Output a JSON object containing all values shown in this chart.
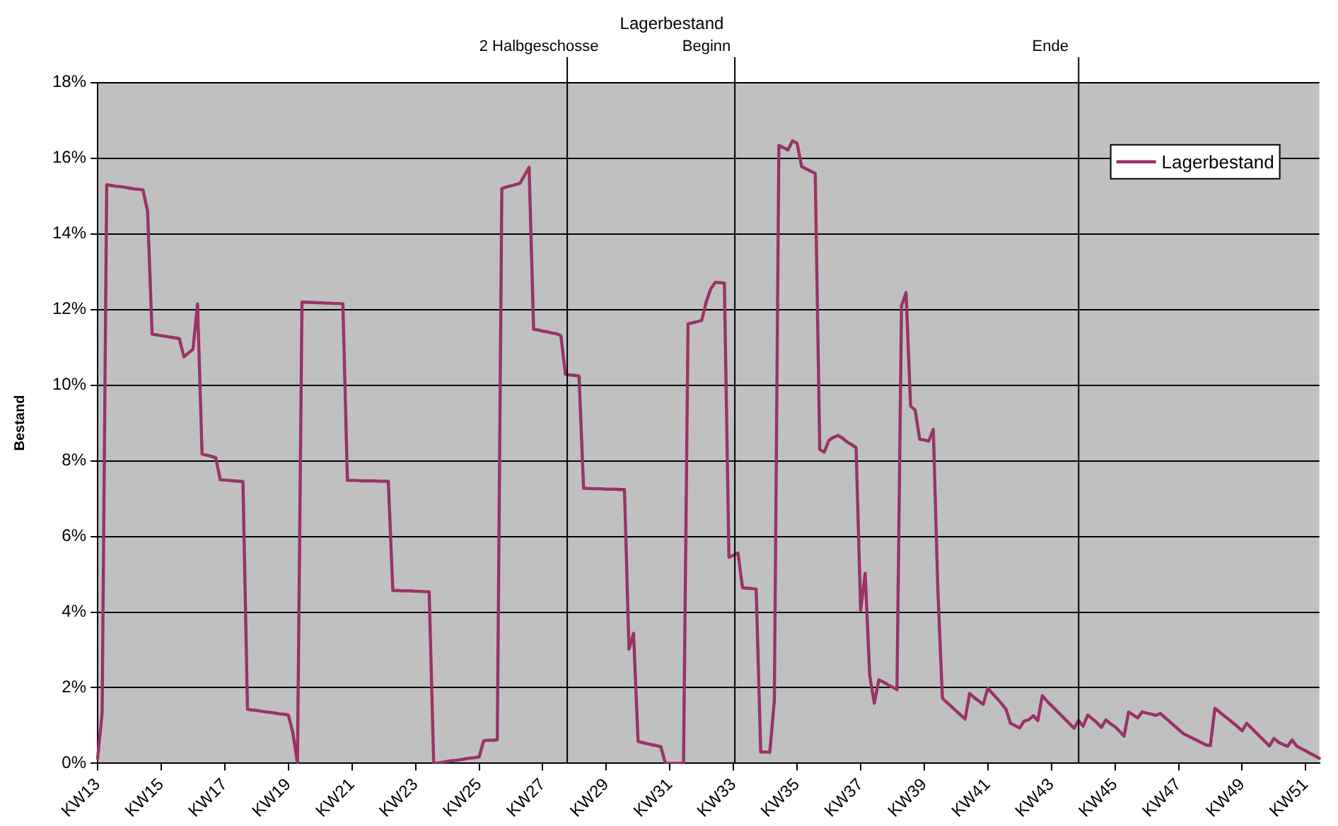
{
  "chart_data": {
    "type": "line",
    "title": "Lagerbestand",
    "ylabel": "Bestand",
    "categories": [
      "KW13",
      null,
      null,
      null,
      null,
      null,
      null,
      null,
      null,
      null,
      null,
      null,
      null,
      null,
      "KW15",
      null,
      null,
      null,
      null,
      null,
      null,
      null,
      null,
      null,
      null,
      null,
      null,
      null,
      "KW17",
      null,
      null,
      null,
      null,
      null,
      null,
      null,
      null,
      null,
      null,
      null,
      null,
      null,
      "KW19",
      null,
      null,
      null,
      null,
      null,
      null,
      null,
      null,
      null,
      null,
      null,
      null,
      null,
      "KW21",
      null,
      null,
      null,
      null,
      null,
      null,
      null,
      null,
      null,
      null,
      null,
      null,
      null,
      "KW23",
      null,
      null,
      null,
      null,
      null,
      null,
      null,
      null,
      null,
      null,
      null,
      null,
      null,
      "KW25",
      null,
      null,
      null,
      null,
      null,
      null,
      null,
      null,
      null,
      null,
      null,
      null,
      null,
      "KW27",
      null,
      null,
      null,
      null,
      null,
      null,
      null,
      null,
      null,
      null,
      null,
      null,
      null,
      "KW29",
      null,
      null,
      null,
      null,
      null,
      null,
      null,
      null,
      null,
      null,
      null,
      null,
      null,
      "KW31",
      null,
      null,
      null,
      null,
      null,
      null,
      null,
      null,
      null,
      null,
      null,
      null,
      null,
      "KW33",
      null,
      null,
      null,
      null,
      null,
      null,
      null,
      null,
      null,
      null,
      null,
      null,
      null,
      "KW35",
      null,
      null,
      null,
      null,
      null,
      null,
      null,
      null,
      null,
      null,
      null,
      null,
      null,
      "KW37",
      null,
      null,
      null,
      null,
      null,
      null,
      null,
      null,
      null,
      null,
      null,
      null,
      null,
      "KW39",
      null,
      null,
      null,
      null,
      null,
      null,
      null,
      null,
      null,
      null,
      null,
      null,
      null,
      "KW41",
      null,
      null,
      null,
      null,
      null,
      null,
      null,
      null,
      null,
      null,
      null,
      null,
      null,
      "KW43",
      null,
      null,
      null,
      null,
      null,
      null,
      null,
      null,
      null,
      null,
      null,
      null,
      null,
      "KW45",
      null,
      null,
      null,
      null,
      null,
      null,
      null,
      null,
      null,
      null,
      null,
      null,
      null,
      "KW47",
      null,
      null,
      null,
      null,
      null,
      null,
      null,
      null,
      null,
      null,
      null,
      null,
      null,
      "KW49",
      null,
      null,
      null,
      null,
      null,
      null,
      null,
      null,
      null,
      null,
      null,
      null,
      null,
      "KW51",
      null,
      null,
      null
    ],
    "ylim": [
      0,
      18
    ],
    "yticks": [
      {
        "value": 0,
        "label": "0%"
      },
      {
        "value": 2,
        "label": "2%"
      },
      {
        "value": 4,
        "label": "4%"
      },
      {
        "value": 6,
        "label": "6%"
      },
      {
        "value": 8,
        "label": "8%"
      },
      {
        "value": 10,
        "label": "10%"
      },
      {
        "value": 12,
        "label": "12%"
      },
      {
        "value": 14,
        "label": "14%"
      },
      {
        "value": 16,
        "label": "16%"
      },
      {
        "value": 18,
        "label": "18%"
      }
    ],
    "grid": "y",
    "legend": "top right",
    "marker": "none",
    "line_style": "solid",
    "annotations": [
      "2 Halbgeschosse",
      "Beginn",
      "Ende"
    ],
    "series": [
      {
        "name": "Lagerbestand",
        "color": "#993366",
        "values": [
          0.13,
          1.35,
          15.3,
          15.28,
          15.26,
          15.25,
          15.23,
          15.21,
          15.19,
          15.18,
          15.16,
          14.6,
          11.35,
          11.33,
          11.31,
          11.29,
          11.27,
          11.25,
          11.23,
          10.75,
          10.85,
          10.95,
          12.15,
          8.18,
          8.15,
          8.12,
          8.08,
          7.5,
          7.49,
          7.48,
          7.47,
          7.46,
          7.45,
          1.43,
          1.41,
          1.4,
          1.38,
          1.36,
          1.35,
          1.33,
          1.31,
          1.3,
          1.28,
          0.8,
          0,
          12.2,
          12.19,
          12.19,
          12.18,
          12.18,
          12.17,
          12.17,
          12.16,
          12.16,
          12.15,
          7.48,
          7.48,
          7.48,
          7.47,
          7.47,
          7.47,
          7.47,
          7.46,
          7.46,
          7.46,
          4.57,
          4.57,
          4.56,
          4.56,
          4.56,
          4.55,
          4.55,
          4.54,
          4.54,
          0,
          0.01,
          0.03,
          0.05,
          0.07,
          0.08,
          0.1,
          0.12,
          0.14,
          0.15,
          0.17,
          0.6,
          0.61,
          0.61,
          0.62,
          15.2,
          15.24,
          15.27,
          15.3,
          15.34,
          15.55,
          15.76,
          11.48,
          11.46,
          11.43,
          11.41,
          11.38,
          11.36,
          11.31,
          10.29,
          10.27,
          10.26,
          10.24,
          7.27,
          7.27,
          7.26,
          7.26,
          7.26,
          7.25,
          7.25,
          7.25,
          7.24,
          7.24,
          3.02,
          3.44,
          0.58,
          0.55,
          0.52,
          0.49,
          0.47,
          0.44,
          0,
          0,
          0,
          0,
          0,
          11.62,
          11.65,
          11.68,
          11.71,
          12.2,
          12.55,
          12.72,
          12.71,
          12.7,
          5.45,
          5.5,
          5.56,
          4.64,
          4.63,
          4.62,
          4.61,
          0.3,
          0.3,
          0.29,
          1.66,
          16.34,
          16.28,
          16.22,
          16.46,
          16.4,
          15.78,
          15.72,
          15.66,
          15.6,
          8.3,
          8.23,
          8.54,
          8.62,
          8.67,
          8.6,
          8.5,
          8.43,
          8.35,
          4.05,
          5.03,
          2.32,
          1.59,
          2.21,
          2.15,
          2.08,
          2.02,
          1.95,
          12.1,
          12.45,
          9.45,
          9.34,
          8.57,
          8.55,
          8.52,
          8.83,
          4.6,
          1.72,
          1.61,
          1.5,
          1.39,
          1.28,
          1.17,
          1.85,
          1.74,
          1.65,
          1.56,
          1.99,
          1.85,
          1.72,
          1.58,
          1.43,
          1.06,
          1,
          0.93,
          1.12,
          1.15,
          1.26,
          1.13,
          1.79,
          1.65,
          1.53,
          1.41,
          1.29,
          1.17,
          1.05,
          0.93,
          1.13,
          0.98,
          1.28,
          1.18,
          1.08,
          0.95,
          1.15,
          1.05,
          0.97,
          0.85,
          0.72,
          1.36,
          1.28,
          1.2,
          1.36,
          1.33,
          1.3,
          1.27,
          1.32,
          1.21,
          1.11,
          1,
          0.9,
          0.79,
          0.73,
          0.67,
          0.61,
          0.55,
          0.49,
          0.47,
          1.46,
          1.36,
          1.26,
          1.17,
          1.07,
          0.97,
          0.86,
          1.06,
          0.94,
          0.82,
          0.7,
          0.58,
          0.46,
          0.66,
          0.56,
          0.5,
          0.45,
          0.62,
          0.46,
          0.39,
          0.33,
          0.26,
          0.2,
          0.13
        ]
      }
    ]
  }
}
